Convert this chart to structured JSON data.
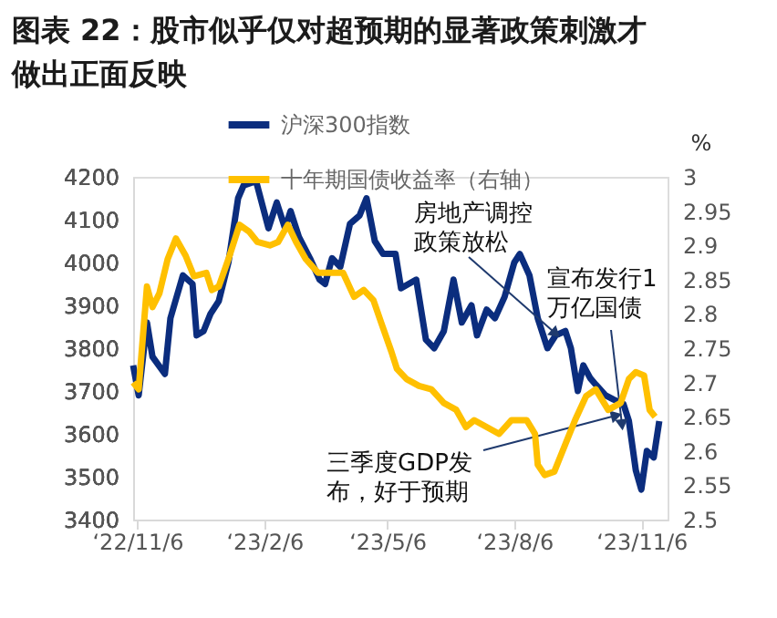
{
  "chart_data": {
    "type": "line",
    "title": "图表 22：股市似乎仅对超预期的显著政策刺激才做出正面反映",
    "y2label": "%",
    "xlim": [
      "2022-11-03",
      "2023-11-25"
    ],
    "xticks": [
      {
        "value": "2022-11-06",
        "label": "‘22/11/6"
      },
      {
        "value": "2023-02-06",
        "label": "‘23/2/6"
      },
      {
        "value": "2023-05-06",
        "label": "‘23/5/6"
      },
      {
        "value": "2023-08-06",
        "label": "‘23/8/6"
      },
      {
        "value": "2023-11-06",
        "label": "‘23/11/6"
      }
    ],
    "ylim": [
      3400,
      4200
    ],
    "yticks": [
      3400,
      3500,
      3600,
      3700,
      3800,
      3900,
      4000,
      4100,
      4200
    ],
    "y2lim": [
      2.5,
      3
    ],
    "y2ticks": [
      2.5,
      2.55,
      2.6,
      2.65,
      2.7,
      2.75,
      2.8,
      2.85,
      2.9,
      2.95,
      3
    ],
    "grid": false,
    "legend": "top left",
    "line_style": "solid",
    "marker": "none",
    "series": [
      {
        "name": "沪深300指数",
        "color": "#0b2d7e",
        "x": [
          "2022-11-03",
          "2022-11-07",
          "2022-11-13",
          "2022-11-17",
          "2022-11-26",
          "2022-11-30",
          "2022-12-09",
          "2022-12-16",
          "2022-12-19",
          "2022-12-24",
          "2022-12-29",
          "2023-01-04",
          "2023-01-11",
          "2023-01-18",
          "2023-01-22",
          "2023-01-31",
          "2023-02-09",
          "2023-02-15",
          "2023-02-21",
          "2023-02-25",
          "2023-03-03",
          "2023-03-11",
          "2023-03-18",
          "2023-03-22",
          "2023-03-27",
          "2023-04-02",
          "2023-04-09",
          "2023-04-16",
          "2023-04-21",
          "2023-04-27",
          "2023-05-03",
          "2023-05-12",
          "2023-05-16",
          "2023-05-27",
          "2023-06-03",
          "2023-06-09",
          "2023-06-16",
          "2023-06-23",
          "2023-06-29",
          "2023-07-06",
          "2023-07-10",
          "2023-07-17",
          "2023-07-23",
          "2023-07-30",
          "2023-08-06",
          "2023-08-10",
          "2023-08-17",
          "2023-08-23",
          "2023-08-30",
          "2023-09-05",
          "2023-09-12",
          "2023-09-16",
          "2023-09-21",
          "2023-09-25",
          "2023-09-30",
          "2023-10-04",
          "2023-10-11",
          "2023-10-17",
          "2023-10-24",
          "2023-10-28",
          "2023-11-02",
          "2023-11-06",
          "2023-11-10",
          "2023-11-15",
          "2023-11-19"
        ],
        "values": [
          3760,
          3690,
          3860,
          3780,
          3740,
          3870,
          3970,
          3950,
          3830,
          3840,
          3880,
          3910,
          4000,
          4150,
          4180,
          4190,
          4080,
          4140,
          4080,
          4120,
          4060,
          4010,
          3960,
          3950,
          4010,
          3990,
          4090,
          4110,
          4150,
          4050,
          4020,
          4020,
          3940,
          3960,
          3820,
          3800,
          3840,
          3960,
          3860,
          3900,
          3830,
          3890,
          3870,
          3920,
          4000,
          4020,
          3970,
          3870,
          3800,
          3830,
          3840,
          3800,
          3700,
          3760,
          3730,
          3715,
          3690,
          3680,
          3670,
          3630,
          3515,
          3470,
          3560,
          3545,
          3630
        ]
      },
      {
        "name": "十年期国债收益率（右轴）",
        "color": "#ffc000",
        "axis": "y2",
        "x": [
          "2022-11-03",
          "2022-11-07",
          "2022-11-13",
          "2022-11-17",
          "2022-11-22",
          "2022-11-28",
          "2022-12-04",
          "2022-12-11",
          "2022-12-17",
          "2022-12-26",
          "2022-12-30",
          "2023-01-04",
          "2023-01-11",
          "2023-01-19",
          "2023-01-26",
          "2023-02-01",
          "2023-02-10",
          "2023-02-16",
          "2023-02-23",
          "2023-03-01",
          "2023-03-08",
          "2023-03-17",
          "2023-03-26",
          "2023-04-04",
          "2023-04-12",
          "2023-04-19",
          "2023-04-26",
          "2023-05-02",
          "2023-05-09",
          "2023-05-13",
          "2023-05-20",
          "2023-05-29",
          "2023-06-07",
          "2023-06-16",
          "2023-06-25",
          "2023-07-02",
          "2023-07-08",
          "2023-07-17",
          "2023-07-26",
          "2023-08-04",
          "2023-08-15",
          "2023-08-21",
          "2023-08-23",
          "2023-08-28",
          "2023-09-04",
          "2023-09-12",
          "2023-09-19",
          "2023-09-27",
          "2023-10-04",
          "2023-10-13",
          "2023-10-22",
          "2023-10-28",
          "2023-11-02",
          "2023-11-08",
          "2023-11-12",
          "2023-11-16"
        ],
        "values": [
          2.7,
          2.69,
          2.84,
          2.81,
          2.83,
          2.88,
          2.91,
          2.885,
          2.855,
          2.86,
          2.835,
          2.84,
          2.88,
          2.93,
          2.92,
          2.905,
          2.9,
          2.905,
          2.93,
          2.905,
          2.88,
          2.86,
          2.86,
          2.86,
          2.825,
          2.835,
          2.82,
          2.785,
          2.745,
          2.72,
          2.705,
          2.695,
          2.69,
          2.67,
          2.66,
          2.635,
          2.645,
          2.635,
          2.625,
          2.645,
          2.645,
          2.625,
          2.58,
          2.565,
          2.57,
          2.61,
          2.645,
          2.68,
          2.69,
          2.66,
          2.67,
          2.705,
          2.715,
          2.71,
          2.66,
          2.65
        ]
      }
    ],
    "annotations": [
      {
        "text": "房地产调控政策放松",
        "x": "2023-09-05",
        "y": 3834
      },
      {
        "text": "宣布发行1万亿国债",
        "x": "2023-10-23",
        "y": 3621
      },
      {
        "text": "三季度GDP发布，好于预期",
        "x": "2023-10-19",
        "y": 3643
      }
    ]
  }
}
